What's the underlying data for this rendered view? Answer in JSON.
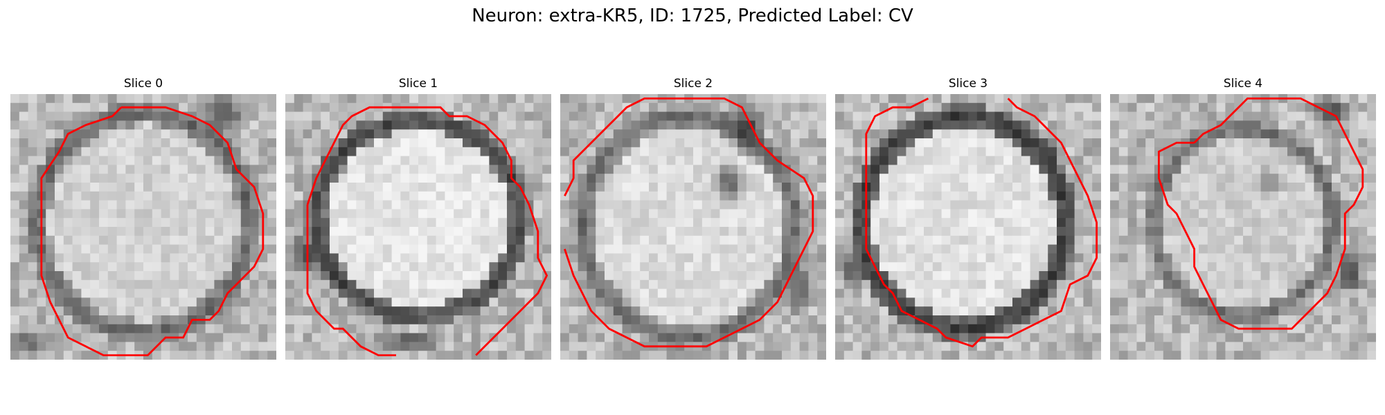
{
  "figure": {
    "title": "Neuron: extra-KR5, ID: 1725, Predicted Label: CV"
  },
  "colors": {
    "background": "#ffffff",
    "contour": "#ff0000"
  },
  "slices": [
    {
      "title": "Slice 0"
    },
    {
      "title": "Slice 1"
    },
    {
      "title": "Slice 2"
    },
    {
      "title": "Slice 3"
    },
    {
      "title": "Slice 4"
    }
  ]
}
